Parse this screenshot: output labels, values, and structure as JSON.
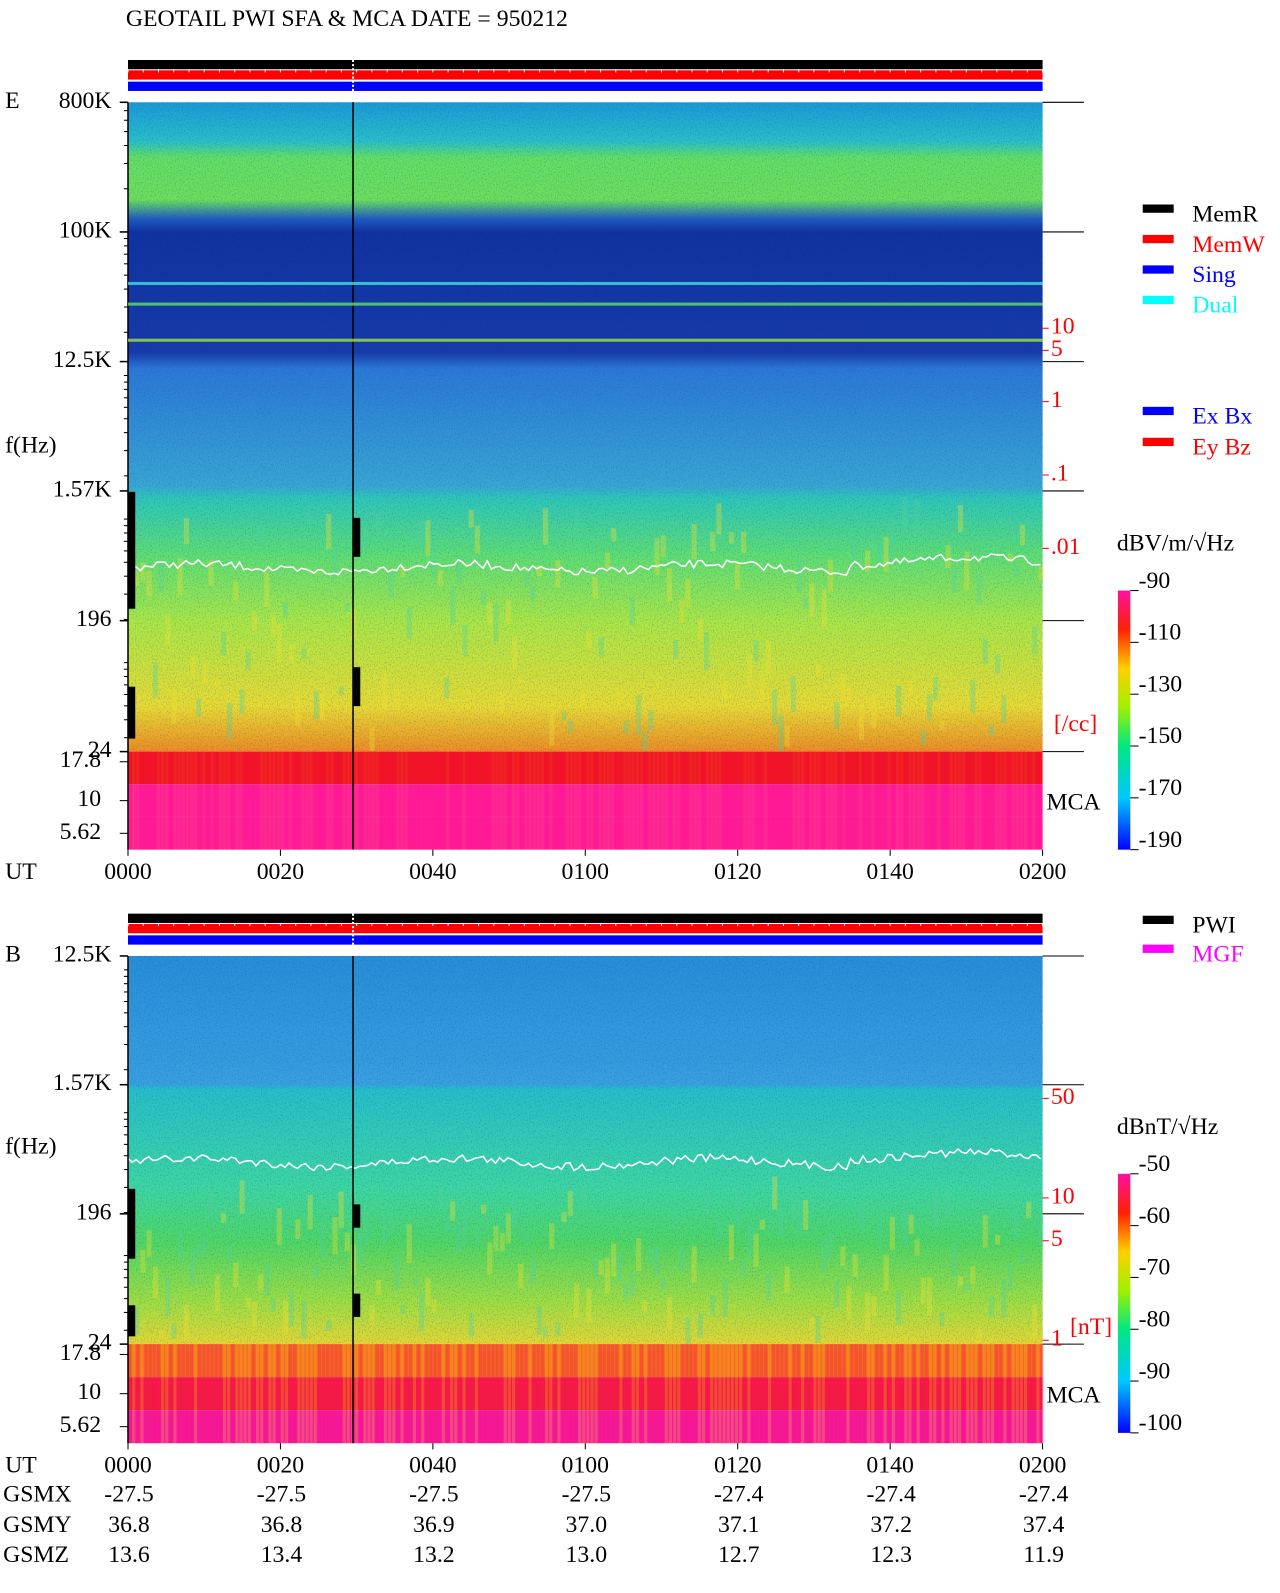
{
  "header": {
    "title": "GEOTAIL  PWI SFA & MCA   DATE = 950212"
  },
  "time_axis": {
    "label": "UT",
    "ticks": [
      "0000",
      "0020",
      "0040",
      "0100",
      "0120",
      "0140",
      "0200"
    ]
  },
  "e_panel": {
    "label": "E",
    "ylabel": "f(Hz)",
    "freq_lim": [
      24,
      800000
    ],
    "freq_ticks": [
      {
        "value": 800000,
        "label": "800K"
      },
      {
        "value": 100000,
        "label": "100K"
      },
      {
        "value": 12500,
        "label": "12.5K"
      },
      {
        "value": 1570,
        "label": "1.57K"
      },
      196,
      24
    ],
    "mca_ticks": [
      "17.8",
      "10",
      "5.62"
    ],
    "mca_label": "MCA",
    "density_lim": [
      1.7e-05,
      12000
    ],
    "density_ticks": [
      10,
      5,
      1,
      {
        "value": 0.1,
        "label": ".1"
      },
      {
        "value": 0.01,
        "label": ".01"
      }
    ],
    "density_unit": "[/cc]",
    "colorbar": {
      "unit": "dBV/m/√Hz",
      "lim": [
        -190,
        -90
      ],
      "ticks": [
        -90,
        -110,
        -130,
        -150,
        -170,
        -190
      ]
    }
  },
  "b_panel": {
    "label": "B",
    "ylabel": "f(Hz)",
    "freq_lim": [
      24,
      12500
    ],
    "freq_ticks": [
      {
        "value": 12500,
        "label": "12.5K"
      },
      {
        "value": 1570,
        "label": "1.57K"
      },
      196,
      24
    ],
    "mca_ticks": [
      "17.8",
      "10",
      "5.62"
    ],
    "mca_label": "MCA",
    "field_lim": [
      0.94,
      500
    ],
    "field_ticks": [
      50,
      10,
      5,
      1
    ],
    "field_unit": "[nT]",
    "colorbar": {
      "unit": "dBnT/√Hz",
      "lim": [
        -100,
        -50
      ],
      "ticks": [
        -50,
        -60,
        -70,
        -80,
        -90,
        -100
      ]
    }
  },
  "legend_mode": [
    {
      "name": "MemR",
      "color": "#000000"
    },
    {
      "name": "MemW",
      "color": "#ff0000"
    },
    {
      "name": "Sing",
      "color": "#0000ff"
    },
    {
      "name": "Dual",
      "color": "#00ffff"
    }
  ],
  "legend_component": [
    {
      "name": "Ex Bx",
      "color": "#0000ff"
    },
    {
      "name": "Ey Bz",
      "color": "#ff0000"
    }
  ],
  "legend_source": [
    {
      "name": "PWI",
      "color": "#000000"
    },
    {
      "name": "MGF",
      "color": "#ff00ff"
    }
  ],
  "ephemeris": {
    "rows": [
      {
        "name": "GSMX",
        "values": [
          "-27.5",
          "-27.5",
          "-27.5",
          "-27.5",
          "-27.4",
          "-27.4",
          "-27.4"
        ]
      },
      {
        "name": "GSMY",
        "values": [
          "36.8",
          "36.8",
          "36.9",
          "37.0",
          "37.1",
          "37.2",
          "37.4"
        ]
      },
      {
        "name": "GSMZ",
        "values": [
          "13.6",
          "13.4",
          "13.2",
          "13.0",
          "12.7",
          "12.3",
          "11.9"
        ]
      }
    ]
  }
}
